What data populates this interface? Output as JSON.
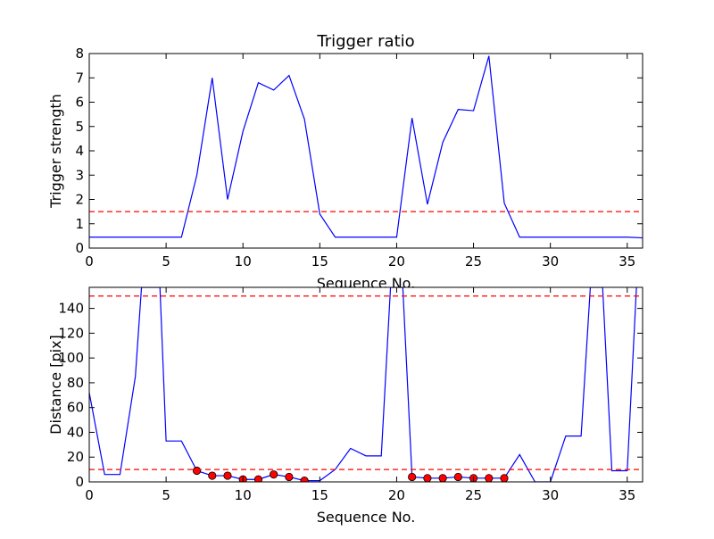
{
  "chart_data": [
    {
      "type": "line",
      "title": "Trigger ratio",
      "xlabel": "Sequence No.",
      "ylabel": "Trigger strength",
      "xlim": [
        0,
        36
      ],
      "ylim": [
        0,
        8
      ],
      "xticks": [
        0,
        5,
        10,
        15,
        20,
        25,
        30,
        35
      ],
      "yticks": [
        0,
        1,
        2,
        3,
        4,
        5,
        6,
        7,
        8
      ],
      "grid": false,
      "series": [
        {
          "style": "solid",
          "color": "#0000ff",
          "x": [
            0,
            1,
            2,
            3,
            4,
            5,
            6,
            7,
            8,
            9,
            10,
            11,
            12,
            13,
            14,
            15,
            16,
            17,
            18,
            19,
            20,
            21,
            22,
            23,
            24,
            25,
            26,
            27,
            28,
            29,
            30,
            31,
            32,
            33,
            34,
            35,
            36
          ],
          "y": [
            0.45,
            0.45,
            0.45,
            0.45,
            0.45,
            0.45,
            0.45,
            3.0,
            7.0,
            2.0,
            4.8,
            6.8,
            6.5,
            7.1,
            5.3,
            1.4,
            0.45,
            0.45,
            0.45,
            0.45,
            0.45,
            5.35,
            1.8,
            4.35,
            5.7,
            5.65,
            7.9,
            1.85,
            0.45,
            0.45,
            0.45,
            0.45,
            0.45,
            0.45,
            0.45,
            0.45,
            0.42
          ]
        },
        {
          "style": "dashed",
          "color": "#ff0000",
          "x": [
            0,
            36
          ],
          "y": [
            1.5,
            1.5
          ]
        }
      ]
    },
    {
      "type": "line",
      "title": "",
      "xlabel": "Sequence No.",
      "ylabel": "Distance [pix]",
      "xlim": [
        0,
        36
      ],
      "ylim": [
        0,
        157
      ],
      "xticks": [
        0,
        5,
        10,
        15,
        20,
        25,
        30,
        35
      ],
      "yticks": [
        0,
        20,
        40,
        60,
        80,
        100,
        120,
        140
      ],
      "grid": false,
      "series": [
        {
          "style": "solid",
          "color": "#0000ff",
          "x": [
            0,
            1,
            2,
            3,
            3.4,
            4.6,
            5,
            6,
            7,
            8,
            9,
            10,
            11,
            12,
            13,
            14,
            15,
            16,
            17,
            18,
            19,
            19.6,
            20.4,
            21,
            22,
            23,
            24,
            25,
            26,
            27,
            28,
            29,
            30,
            31,
            32,
            32.6,
            33.4,
            34,
            35,
            35.6
          ],
          "y": [
            72,
            6,
            6,
            85,
            157,
            157,
            33,
            33,
            9,
            5,
            5,
            2,
            2,
            6,
            4,
            1,
            1,
            10,
            27,
            21,
            21,
            157,
            157,
            4,
            3,
            3,
            4,
            3,
            3,
            3,
            22,
            0,
            0,
            37,
            37,
            157,
            157,
            9,
            9,
            157
          ]
        },
        {
          "style": "markers",
          "color": "#ff0000",
          "x": [
            7,
            8,
            9,
            10,
            11,
            12,
            13,
            14,
            21,
            22,
            23,
            24,
            25,
            26,
            27
          ],
          "y": [
            9,
            5,
            5,
            2,
            2,
            6,
            4,
            1,
            4,
            3,
            3,
            4,
            3,
            3,
            3
          ]
        },
        {
          "style": "dashed",
          "color": "#ff0000",
          "x": [
            0,
            36
          ],
          "y": [
            150,
            150
          ]
        },
        {
          "style": "dashed",
          "color": "#ff0000",
          "x": [
            0,
            36
          ],
          "y": [
            10,
            10
          ]
        }
      ]
    }
  ]
}
